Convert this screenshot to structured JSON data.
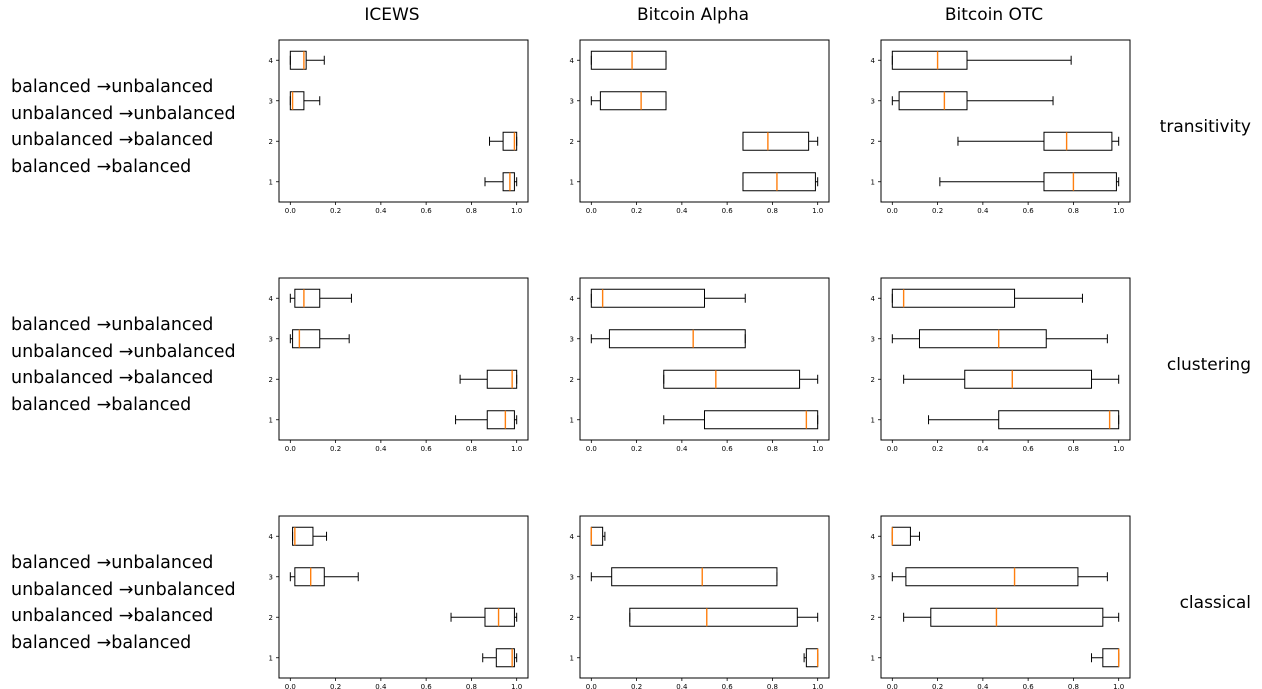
{
  "column_titles": [
    "ICEWS",
    "Bitcoin Alpha",
    "Bitcoin OTC"
  ],
  "row_metric_labels": [
    "transitivity",
    "clustering",
    "classical"
  ],
  "category_labels": [
    "balanced →unbalanced",
    "unbalanced →unbalanced",
    "unbalanced →balanced",
    "balanced →balanced"
  ],
  "colors": {
    "median": "#ff7f0e",
    "box": "#000000",
    "axes": "#000000"
  },
  "chart_data": [
    {
      "type": "boxplot",
      "orientation": "horizontal",
      "dataset": "ICEWS",
      "metric": "transitivity",
      "x_ticks": [
        0.0,
        0.2,
        0.4,
        0.6,
        0.8,
        1.0
      ],
      "y_ticks": [
        1,
        2,
        3,
        4
      ],
      "xlim": [
        -0.05,
        1.05
      ],
      "boxes": [
        {
          "pos": 1,
          "whislo": 0.86,
          "q1": 0.94,
          "med": 0.97,
          "q3": 0.99,
          "whishi": 1.0
        },
        {
          "pos": 2,
          "whislo": 0.88,
          "q1": 0.94,
          "med": 0.99,
          "q3": 1.0,
          "whishi": 1.0
        },
        {
          "pos": 3,
          "whislo": 0.0,
          "q1": 0.0,
          "med": 0.01,
          "q3": 0.06,
          "whishi": 0.13
        },
        {
          "pos": 4,
          "whislo": 0.0,
          "q1": 0.0,
          "med": 0.06,
          "q3": 0.07,
          "whishi": 0.15
        }
      ]
    },
    {
      "type": "boxplot",
      "orientation": "horizontal",
      "dataset": "Bitcoin Alpha",
      "metric": "transitivity",
      "x_ticks": [
        0.0,
        0.2,
        0.4,
        0.6,
        0.8,
        1.0
      ],
      "y_ticks": [
        1,
        2,
        3,
        4
      ],
      "xlim": [
        -0.05,
        1.05
      ],
      "boxes": [
        {
          "pos": 1,
          "whislo": 0.67,
          "q1": 0.67,
          "med": 0.82,
          "q3": 0.99,
          "whishi": 1.0
        },
        {
          "pos": 2,
          "whislo": 0.67,
          "q1": 0.67,
          "med": 0.78,
          "q3": 0.96,
          "whishi": 1.0
        },
        {
          "pos": 3,
          "whislo": 0.0,
          "q1": 0.04,
          "med": 0.22,
          "q3": 0.33,
          "whishi": 0.33
        },
        {
          "pos": 4,
          "whislo": 0.0,
          "q1": 0.0,
          "med": 0.18,
          "q3": 0.33,
          "whishi": 0.33
        }
      ]
    },
    {
      "type": "boxplot",
      "orientation": "horizontal",
      "dataset": "Bitcoin OTC",
      "metric": "transitivity",
      "x_ticks": [
        0.0,
        0.2,
        0.4,
        0.6,
        0.8,
        1.0
      ],
      "y_ticks": [
        1,
        2,
        3,
        4
      ],
      "xlim": [
        -0.05,
        1.05
      ],
      "boxes": [
        {
          "pos": 1,
          "whislo": 0.21,
          "q1": 0.67,
          "med": 0.8,
          "q3": 0.99,
          "whishi": 1.0
        },
        {
          "pos": 2,
          "whislo": 0.29,
          "q1": 0.67,
          "med": 0.77,
          "q3": 0.97,
          "whishi": 1.0
        },
        {
          "pos": 3,
          "whislo": 0.0,
          "q1": 0.03,
          "med": 0.23,
          "q3": 0.33,
          "whishi": 0.71
        },
        {
          "pos": 4,
          "whislo": 0.0,
          "q1": 0.0,
          "med": 0.2,
          "q3": 0.33,
          "whishi": 0.79
        }
      ]
    },
    {
      "type": "boxplot",
      "orientation": "horizontal",
      "dataset": "ICEWS",
      "metric": "clustering",
      "x_ticks": [
        0.0,
        0.2,
        0.4,
        0.6,
        0.8,
        1.0
      ],
      "y_ticks": [
        1,
        2,
        3,
        4
      ],
      "xlim": [
        -0.05,
        1.05
      ],
      "boxes": [
        {
          "pos": 1,
          "whislo": 0.73,
          "q1": 0.87,
          "med": 0.95,
          "q3": 0.99,
          "whishi": 1.0
        },
        {
          "pos": 2,
          "whislo": 0.75,
          "q1": 0.87,
          "med": 0.98,
          "q3": 1.0,
          "whishi": 1.0
        },
        {
          "pos": 3,
          "whislo": 0.0,
          "q1": 0.01,
          "med": 0.04,
          "q3": 0.13,
          "whishi": 0.26
        },
        {
          "pos": 4,
          "whislo": 0.0,
          "q1": 0.02,
          "med": 0.06,
          "q3": 0.13,
          "whishi": 0.27
        }
      ]
    },
    {
      "type": "boxplot",
      "orientation": "horizontal",
      "dataset": "Bitcoin Alpha",
      "metric": "clustering",
      "x_ticks": [
        0.0,
        0.2,
        0.4,
        0.6,
        0.8,
        1.0
      ],
      "y_ticks": [
        1,
        2,
        3,
        4
      ],
      "xlim": [
        -0.05,
        1.05
      ],
      "boxes": [
        {
          "pos": 1,
          "whislo": 0.32,
          "q1": 0.5,
          "med": 0.95,
          "q3": 1.0,
          "whishi": 1.0
        },
        {
          "pos": 2,
          "whislo": 0.32,
          "q1": 0.32,
          "med": 0.55,
          "q3": 0.92,
          "whishi": 1.0
        },
        {
          "pos": 3,
          "whislo": 0.0,
          "q1": 0.08,
          "med": 0.45,
          "q3": 0.68,
          "whishi": 0.68
        },
        {
          "pos": 4,
          "whislo": 0.0,
          "q1": 0.0,
          "med": 0.05,
          "q3": 0.5,
          "whishi": 0.68
        }
      ]
    },
    {
      "type": "boxplot",
      "orientation": "horizontal",
      "dataset": "Bitcoin OTC",
      "metric": "clustering",
      "x_ticks": [
        0.0,
        0.2,
        0.4,
        0.6,
        0.8,
        1.0
      ],
      "y_ticks": [
        1,
        2,
        3,
        4
      ],
      "xlim": [
        -0.05,
        1.05
      ],
      "boxes": [
        {
          "pos": 1,
          "whislo": 0.16,
          "q1": 0.47,
          "med": 0.96,
          "q3": 1.0,
          "whishi": 1.0
        },
        {
          "pos": 2,
          "whislo": 0.05,
          "q1": 0.32,
          "med": 0.53,
          "q3": 0.88,
          "whishi": 1.0
        },
        {
          "pos": 3,
          "whislo": 0.0,
          "q1": 0.12,
          "med": 0.47,
          "q3": 0.68,
          "whishi": 0.95
        },
        {
          "pos": 4,
          "whislo": 0.0,
          "q1": 0.0,
          "med": 0.05,
          "q3": 0.54,
          "whishi": 0.84
        }
      ]
    },
    {
      "type": "boxplot",
      "orientation": "horizontal",
      "dataset": "ICEWS",
      "metric": "classical",
      "x_ticks": [
        0.0,
        0.2,
        0.4,
        0.6,
        0.8,
        1.0
      ],
      "y_ticks": [
        1,
        2,
        3,
        4
      ],
      "xlim": [
        -0.05,
        1.05
      ],
      "boxes": [
        {
          "pos": 1,
          "whislo": 0.85,
          "q1": 0.91,
          "med": 0.98,
          "q3": 0.99,
          "whishi": 1.0
        },
        {
          "pos": 2,
          "whislo": 0.71,
          "q1": 0.86,
          "med": 0.92,
          "q3": 0.99,
          "whishi": 1.0
        },
        {
          "pos": 3,
          "whislo": 0.0,
          "q1": 0.02,
          "med": 0.09,
          "q3": 0.15,
          "whishi": 0.3
        },
        {
          "pos": 4,
          "whislo": 0.01,
          "q1": 0.01,
          "med": 0.02,
          "q3": 0.1,
          "whishi": 0.16
        }
      ]
    },
    {
      "type": "boxplot",
      "orientation": "horizontal",
      "dataset": "Bitcoin Alpha",
      "metric": "classical",
      "x_ticks": [
        0.0,
        0.2,
        0.4,
        0.6,
        0.8,
        1.0
      ],
      "y_ticks": [
        1,
        2,
        3,
        4
      ],
      "xlim": [
        -0.05,
        1.05
      ],
      "boxes": [
        {
          "pos": 1,
          "whislo": 0.94,
          "q1": 0.95,
          "med": 1.0,
          "q3": 1.0,
          "whishi": 1.0
        },
        {
          "pos": 2,
          "whislo": 0.17,
          "q1": 0.17,
          "med": 0.51,
          "q3": 0.91,
          "whishi": 1.0
        },
        {
          "pos": 3,
          "whislo": 0.0,
          "q1": 0.09,
          "med": 0.49,
          "q3": 0.82,
          "whishi": 0.82
        },
        {
          "pos": 4,
          "whislo": 0.0,
          "q1": 0.0,
          "med": 0.0,
          "q3": 0.05,
          "whishi": 0.06
        }
      ]
    },
    {
      "type": "boxplot",
      "orientation": "horizontal",
      "dataset": "Bitcoin OTC",
      "metric": "classical",
      "x_ticks": [
        0.0,
        0.2,
        0.4,
        0.6,
        0.8,
        1.0
      ],
      "y_ticks": [
        1,
        2,
        3,
        4
      ],
      "xlim": [
        -0.05,
        1.05
      ],
      "boxes": [
        {
          "pos": 1,
          "whislo": 0.88,
          "q1": 0.93,
          "med": 1.0,
          "q3": 1.0,
          "whishi": 1.0
        },
        {
          "pos": 2,
          "whislo": 0.05,
          "q1": 0.17,
          "med": 0.46,
          "q3": 0.93,
          "whishi": 1.0
        },
        {
          "pos": 3,
          "whislo": 0.0,
          "q1": 0.06,
          "med": 0.54,
          "q3": 0.82,
          "whishi": 0.95
        },
        {
          "pos": 4,
          "whislo": 0.0,
          "q1": 0.0,
          "med": 0.0,
          "q3": 0.08,
          "whishi": 0.12
        }
      ]
    }
  ]
}
